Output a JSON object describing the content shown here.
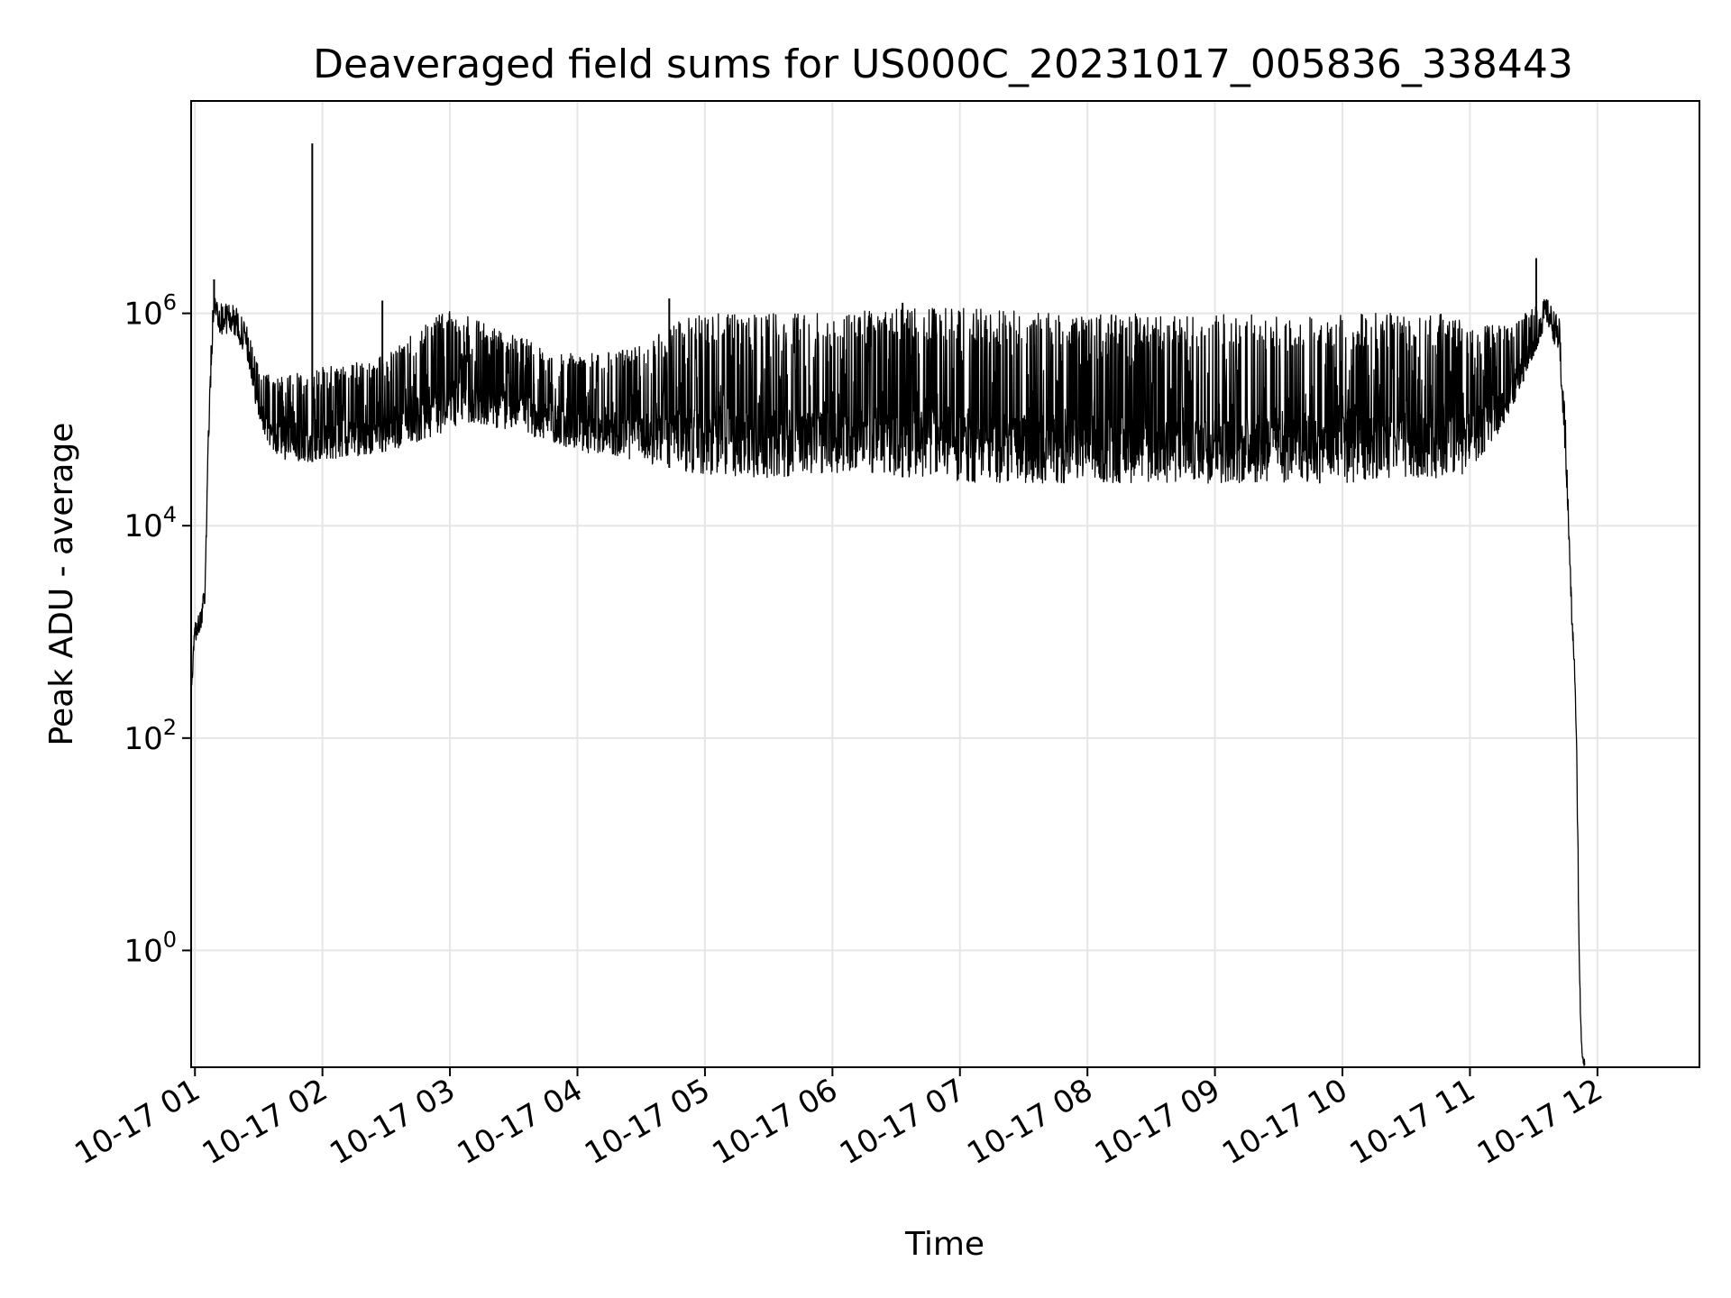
{
  "chart_data": {
    "type": "line",
    "title": "Deaveraged field sums for US000C_20231017_005836_338443",
    "xlabel": "Time",
    "ylabel": "Peak ADU - average",
    "yscale": "log",
    "grid": true,
    "line_color": "#000000",
    "grid_color": "#e6e6e6",
    "xlim_hours": [
      0.97,
      12.8
    ],
    "ylim_log10": [
      -1.1,
      8.0
    ],
    "x_ticks": [
      {
        "label": "10-17 01",
        "hour": 1
      },
      {
        "label": "10-17 02",
        "hour": 2
      },
      {
        "label": "10-17 03",
        "hour": 3
      },
      {
        "label": "10-17 04",
        "hour": 4
      },
      {
        "label": "10-17 05",
        "hour": 5
      },
      {
        "label": "10-17 06",
        "hour": 6
      },
      {
        "label": "10-17 07",
        "hour": 7
      },
      {
        "label": "10-17 08",
        "hour": 8
      },
      {
        "label": "10-17 09",
        "hour": 9
      },
      {
        "label": "10-17 10",
        "hour": 10
      },
      {
        "label": "10-17 11",
        "hour": 11
      },
      {
        "label": "10-17 12",
        "hour": 12
      }
    ],
    "y_ticks": [
      {
        "base": "10",
        "exp": "0",
        "log10": 0
      },
      {
        "base": "10",
        "exp": "2",
        "log10": 2
      },
      {
        "base": "10",
        "exp": "4",
        "log10": 4
      },
      {
        "base": "10",
        "exp": "6",
        "log10": 6
      }
    ],
    "envelope": {
      "hour": [
        0.97,
        1.0,
        1.05,
        1.08,
        1.1,
        1.13,
        1.15,
        1.2,
        1.3,
        1.4,
        1.5,
        1.6,
        1.7,
        2.0,
        2.5,
        2.8,
        3.0,
        3.5,
        4.0,
        4.5,
        4.9,
        5.0,
        5.5,
        6.0,
        6.2,
        7.0,
        8.0,
        9.0,
        10.0,
        10.8,
        11.0,
        11.3,
        11.5,
        11.6,
        11.7,
        11.75,
        11.8,
        11.82,
        11.84,
        11.86,
        11.88,
        11.9
      ],
      "low_log10": [
        2.3,
        2.9,
        3.0,
        3.3,
        4.5,
        5.5,
        6.0,
        5.8,
        5.8,
        5.6,
        5.0,
        4.7,
        4.6,
        4.6,
        4.7,
        4.8,
        4.9,
        4.9,
        4.7,
        4.6,
        4.5,
        4.45,
        4.45,
        4.5,
        4.5,
        4.4,
        4.4,
        4.4,
        4.4,
        4.45,
        4.5,
        5.0,
        5.6,
        5.9,
        5.6,
        4.6,
        3.0,
        2.6,
        1.5,
        -0.5,
        -1.05,
        -1.1
      ],
      "high_log10": [
        2.5,
        3.1,
        3.2,
        3.5,
        4.7,
        5.9,
        6.2,
        6.1,
        6.1,
        5.9,
        5.5,
        5.4,
        5.4,
        5.5,
        5.6,
        5.9,
        6.05,
        5.8,
        5.6,
        5.7,
        6.0,
        6.0,
        6.0,
        6.0,
        6.05,
        6.05,
        6.0,
        6.0,
        6.0,
        6.0,
        5.9,
        5.9,
        6.05,
        6.15,
        5.95,
        5.0,
        3.2,
        2.8,
        1.8,
        -0.2,
        -0.9,
        -1.0
      ]
    },
    "spikes": [
      {
        "hour": 1.92,
        "log10": 7.6
      },
      {
        "hour": 11.52,
        "log10": 6.52
      },
      {
        "hour": 1.15,
        "log10": 6.32
      },
      {
        "hour": 2.47,
        "log10": 6.12
      },
      {
        "hour": 4.72,
        "log10": 6.14
      },
      {
        "hour": 6.55,
        "log10": 6.1
      }
    ]
  }
}
